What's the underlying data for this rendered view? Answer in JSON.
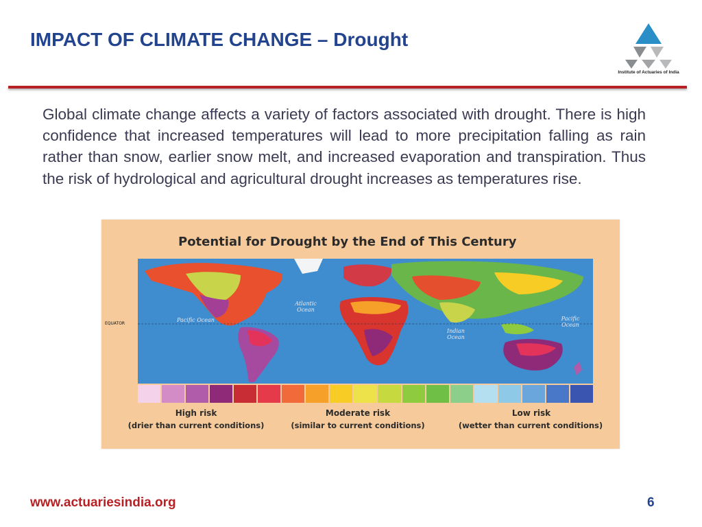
{
  "slide": {
    "title": "IMPACT OF CLIMATE CHANGE – Drought",
    "body": "Global climate change affects a variety of factors associated with drought. There is high confidence that increased temperatures will lead to more precipitation falling as rain rather than snow, earlier snow melt, and increased evaporation and transpiration. Thus the risk of hydrological and agricultural drought increases as temperatures rise.",
    "page_number": "6"
  },
  "logo": {
    "caption": "Institute of Actuaries of India",
    "colors": {
      "top": "#2a8fc6",
      "left": "#8a8d90",
      "right": "#b7b9bb"
    }
  },
  "footer": {
    "url": "www.actuariesindia.org"
  },
  "map": {
    "title": "Potential for Drought by the End of This Century",
    "ocean_labels": {
      "pacific_west": "Pacific Ocean",
      "atlantic": "Atlantic Ocean",
      "indian": "Indian Ocean",
      "pacific_east": "Pacific Ocean"
    },
    "equator_label": "EQUATOR",
    "legend": {
      "high_risk": "High risk",
      "high_risk_note": "(drier than current conditions)",
      "moderate_risk": "Moderate risk",
      "moderate_risk_note": "(similar to current conditions)",
      "low_risk": "Low risk",
      "low_risk_note": "(wetter than current conditions)"
    },
    "scale_colors": [
      "#f3d2ea",
      "#d48cc6",
      "#b15caa",
      "#8e2a78",
      "#c82c35",
      "#e43a4a",
      "#f06a3a",
      "#f6a02a",
      "#f7cd25",
      "#eee24a",
      "#c6d93e",
      "#8ecb3f",
      "#6fbe45",
      "#8ccf8a",
      "#b4dff0",
      "#8fc9e8",
      "#6aa6db",
      "#4a78c8",
      "#3a55b0"
    ],
    "colors": {
      "ocean": "#3f8ccf",
      "panel": "#f6ca9a"
    }
  }
}
